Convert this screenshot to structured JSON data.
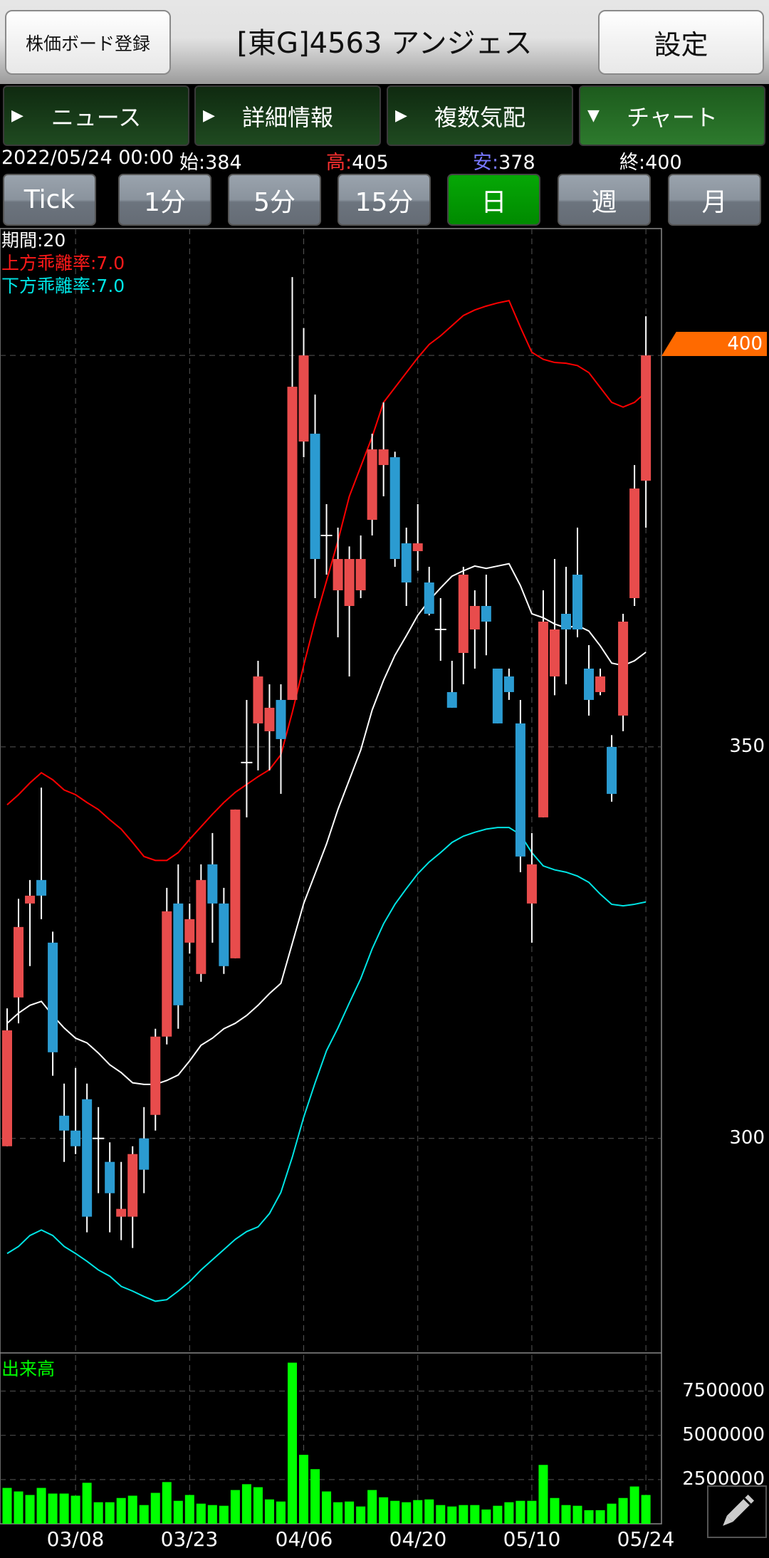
{
  "header": {
    "board_button": "株価ボード登録",
    "title": "[東G]4563 アンジェス",
    "settings_button": "設定"
  },
  "tabs": [
    {
      "label": "ニュース",
      "indicator": "▶",
      "active": false
    },
    {
      "label": "詳細情報",
      "indicator": "▶",
      "active": false
    },
    {
      "label": "複数気配",
      "indicator": "▶",
      "active": false
    },
    {
      "label": "チャート",
      "indicator": "▼",
      "active": true
    }
  ],
  "quote": {
    "datetime": "2022/05/24 00:00",
    "open_label": "始:",
    "open": "384",
    "high_label": "高:",
    "high": "405",
    "low_label": "安:",
    "low": "378",
    "close_label": "終:",
    "close": "400"
  },
  "periods": [
    {
      "label": "Tick",
      "active": false
    },
    {
      "label": "1分",
      "active": false
    },
    {
      "label": "5分",
      "active": false
    },
    {
      "label": "15分",
      "active": false
    },
    {
      "label": "日",
      "active": true
    },
    {
      "label": "週",
      "active": false
    },
    {
      "label": "月",
      "active": false
    }
  ],
  "colors": {
    "up": "#e84c4c",
    "down": "#2b9bd1",
    "ma": "#ffffff",
    "upper": "#ff0000",
    "lower": "#00e5e5",
    "volume": "#00ff00",
    "last_price_tag": "#ff6a00",
    "active_button": "#00a000"
  },
  "chart_data": [
    {
      "type": "candlestick",
      "legend": {
        "period": "期間:20",
        "upper": "上方乖離率:7.0",
        "lower": "下方乖離率:7.0"
      },
      "ylim": [
        272.6,
        416.2
      ],
      "y_ticks": [
        "400",
        "350",
        "300"
      ],
      "y_tick_values": [
        400,
        350,
        300
      ],
      "last_price": "400",
      "x_ticks": [
        {
          "index": 6,
          "label": "03/08"
        },
        {
          "index": 16,
          "label": "03/23"
        },
        {
          "index": 26,
          "label": "04/06"
        },
        {
          "index": 36,
          "label": "04/20"
        },
        {
          "index": 46,
          "label": "05/10"
        },
        {
          "index": 56,
          "label": "05/24"
        }
      ],
      "grid": true,
      "ohlc": [
        [
          299,
          316.6,
          299,
          313.8
        ],
        [
          318,
          330.6,
          314.7,
          327
        ],
        [
          330,
          333,
          322,
          331
        ],
        [
          333,
          344.8,
          328,
          331
        ],
        [
          325,
          326.4,
          308,
          311
        ],
        [
          302.9,
          307,
          297,
          301
        ],
        [
          301,
          309,
          298,
          299
        ],
        [
          305,
          307,
          288,
          290
        ],
        [
          300,
          304,
          293,
          300
        ],
        [
          297,
          299.5,
          288,
          293
        ],
        [
          290,
          297,
          287,
          291
        ],
        [
          290,
          299,
          286,
          298
        ],
        [
          300,
          304,
          293,
          296
        ],
        [
          303,
          314,
          301,
          313
        ],
        [
          313,
          332,
          312,
          329
        ],
        [
          330,
          335,
          314,
          317
        ],
        [
          325,
          330,
          323.6,
          328
        ],
        [
          321,
          335,
          320,
          333
        ],
        [
          335,
          339,
          325,
          330
        ],
        [
          330,
          332,
          321,
          322
        ],
        [
          323,
          342,
          323,
          342
        ],
        [
          348,
          356,
          341,
          348
        ],
        [
          353,
          361,
          347,
          359
        ],
        [
          352,
          358,
          347,
          355
        ],
        [
          356,
          358,
          344,
          351
        ],
        [
          356,
          410,
          356,
          396
        ],
        [
          389,
          403.5,
          387,
          400
        ],
        [
          390,
          395,
          369,
          374
        ],
        [
          377,
          381,
          372,
          377
        ],
        [
          370,
          378,
          364,
          374
        ],
        [
          368,
          375.6,
          359,
          374
        ],
        [
          370,
          377,
          369,
          374
        ],
        [
          379,
          390,
          377,
          388
        ],
        [
          386,
          394,
          382,
          388
        ],
        [
          387,
          387.7,
          373,
          374
        ],
        [
          376,
          378,
          368,
          371
        ],
        [
          375,
          381,
          372.5,
          376
        ],
        [
          371,
          373,
          366.8,
          367
        ],
        [
          365,
          369,
          361,
          365
        ],
        [
          357,
          361,
          355,
          355
        ],
        [
          362,
          373,
          358,
          372
        ],
        [
          365,
          370,
          360,
          368
        ],
        [
          368,
          372,
          361.7,
          366
        ],
        [
          360,
          360,
          353,
          353
        ],
        [
          359,
          360,
          356,
          357
        ],
        [
          353,
          356,
          334,
          336
        ],
        [
          330,
          339,
          325,
          335
        ],
        [
          341,
          370,
          341,
          366
        ],
        [
          359,
          374,
          356.6,
          365
        ],
        [
          367,
          373,
          358,
          365
        ],
        [
          372,
          378,
          364,
          365
        ],
        [
          360,
          363,
          354,
          356
        ],
        [
          357,
          360,
          356.6,
          359
        ],
        [
          350,
          351.5,
          343,
          344
        ],
        [
          354,
          367,
          352,
          366
        ],
        [
          369,
          386,
          368,
          383
        ],
        [
          384,
          405,
          378,
          400
        ]
      ],
      "ma": [
        314.7,
        316.0,
        317.0,
        317.5,
        315.7,
        314.1,
        312.8,
        312.2,
        310.9,
        309.4,
        308.4,
        307.1,
        306.9,
        306.9,
        307.4,
        308.1,
        309.9,
        311.9,
        312.8,
        314.0,
        314.7,
        315.7,
        317.0,
        318.5,
        319.8,
        324.9,
        330.0,
        333.8,
        337.6,
        342.0,
        345.8,
        349.6,
        354.7,
        358.5,
        361.7,
        364.2,
        366.8,
        368.7,
        370.3,
        371.8,
        372.5,
        373.1,
        372.8,
        373.1,
        373.4,
        370.6,
        367.0,
        366.5,
        365.7,
        365.2,
        365.5,
        364.8,
        362.9,
        360.7,
        360.4,
        361.0,
        362.1
      ],
      "upper": [
        342.6,
        343.9,
        345.4,
        346.7,
        345.8,
        344.5,
        343.9,
        342.9,
        342.0,
        340.7,
        339.5,
        337.8,
        336.0,
        335.5,
        335.5,
        336.5,
        338.2,
        339.8,
        341.4,
        342.9,
        344.2,
        345.2,
        346.2,
        347.1,
        349.0,
        354.4,
        360.4,
        366.1,
        371.2,
        376.3,
        382.0,
        385.8,
        389.6,
        394.0,
        395.9,
        397.8,
        399.7,
        401.4,
        402.5,
        403.8,
        405.1,
        405.8,
        406.3,
        406.7,
        407.0,
        403.6,
        400.4,
        399.5,
        399.1,
        399.0,
        398.7,
        397.8,
        395.9,
        394.0,
        393.4,
        394.0,
        395.3
      ],
      "lower": [
        285.3,
        286.2,
        287.6,
        288.3,
        287.6,
        286.2,
        285.3,
        284.3,
        283.2,
        282.4,
        281.1,
        280.5,
        279.8,
        279.2,
        279.4,
        280.5,
        281.7,
        283.2,
        284.5,
        285.8,
        287.1,
        288.1,
        288.7,
        290.4,
        293.1,
        297.6,
        302.7,
        307.1,
        311.2,
        314.1,
        317.3,
        320.4,
        324.2,
        327.4,
        329.9,
        331.9,
        333.8,
        335.3,
        336.5,
        337.8,
        338.6,
        339.1,
        339.5,
        339.7,
        339.7,
        338.8,
        336.5,
        334.8,
        334.3,
        334.0,
        333.5,
        332.7,
        331.2,
        329.9,
        329.7,
        329.9,
        330.2
      ]
    },
    {
      "type": "bar",
      "title": "出来高",
      "ylim": [
        0,
        9660000
      ],
      "y_ticks": [
        "7500000",
        "5000000",
        "2500000"
      ],
      "y_tick_values": [
        7500000,
        5000000,
        2500000
      ],
      "values": [
        2030000,
        1830000,
        1630000,
        2030000,
        1710000,
        1710000,
        1590000,
        2320000,
        1220000,
        1220000,
        1460000,
        1590000,
        1060000,
        1750000,
        2360000,
        1300000,
        1630000,
        1140000,
        1060000,
        1020000,
        1910000,
        2240000,
        2070000,
        1380000,
        1260000,
        9110000,
        3900000,
        3090000,
        1830000,
        1220000,
        1260000,
        980000,
        1910000,
        1500000,
        1300000,
        1220000,
        1340000,
        1380000,
        1060000,
        980000,
        1060000,
        1060000,
        810000,
        1020000,
        1220000,
        1300000,
        1300000,
        3330000,
        1460000,
        1060000,
        1020000,
        770000,
        770000,
        1140000,
        1460000,
        2110000,
        1630000
      ]
    }
  ]
}
